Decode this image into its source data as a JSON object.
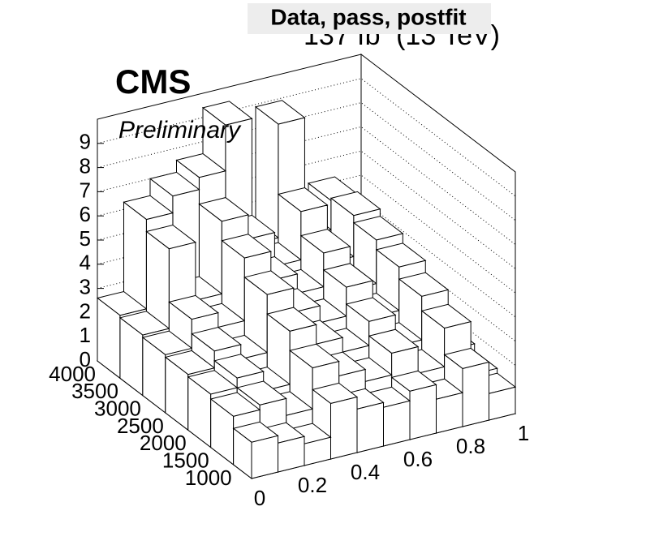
{
  "chart_data": {
    "type": "lego",
    "title": "Data, pass, postfit",
    "experiment": "CMS",
    "status": "Preliminary",
    "lumi": "137 fb",
    "lumi_exponent": "-1",
    "lumi_energy": "(13 TeV)",
    "x_bins": [
      0,
      0.1,
      0.2,
      0.3,
      0.4,
      0.5,
      0.6,
      0.7,
      0.8,
      0.9,
      1
    ],
    "y_bins": [
      600,
      1000,
      1500,
      2000,
      2500,
      3000,
      3500,
      4000
    ],
    "values": [
      [
        1.5,
        1.2,
        0.9,
        2.3,
        1.8,
        1.6,
        2.0,
        1.4,
        2.4,
        1.1
      ],
      [
        2.0,
        2.2,
        1.5,
        3.2,
        2.6,
        2.1,
        3.0,
        1.9,
        3.5,
        1.3
      ],
      [
        2.2,
        2.6,
        1.8,
        4.0,
        3.2,
        2.6,
        3.6,
        2.3,
        4.1,
        1.6
      ],
      [
        2.3,
        3.0,
        2.4,
        4.8,
        3.8,
        3.1,
        4.3,
        2.8,
        4.6,
        1.8
      ],
      [
        2.4,
        3.6,
        3.0,
        5.6,
        4.4,
        3.6,
        5.0,
        3.2,
        5.0,
        2.0
      ],
      [
        2.5,
        5.8,
        3.4,
        6.4,
        5.4,
        4.0,
        6.0,
        3.6,
        5.3,
        2.1
      ],
      [
        2.6,
        6.3,
        7.0,
        7.5,
        9.4,
        4.2,
        8.9,
        4.0,
        5.2,
        2.2
      ]
    ],
    "xlim": [
      0,
      1
    ],
    "xticks": [
      0,
      0.2,
      0.4,
      0.6,
      0.8,
      1
    ],
    "ylim": [
      600,
      4000
    ],
    "yticks": [
      1000,
      1500,
      2000,
      2500,
      3000,
      3500,
      4000
    ],
    "zlim": [
      0,
      10
    ],
    "zticks": [
      0,
      1,
      2,
      3,
      4,
      5,
      6,
      7,
      8,
      9
    ],
    "grid": true,
    "bar_color": "#ffffff",
    "edge_color": "#000000"
  }
}
